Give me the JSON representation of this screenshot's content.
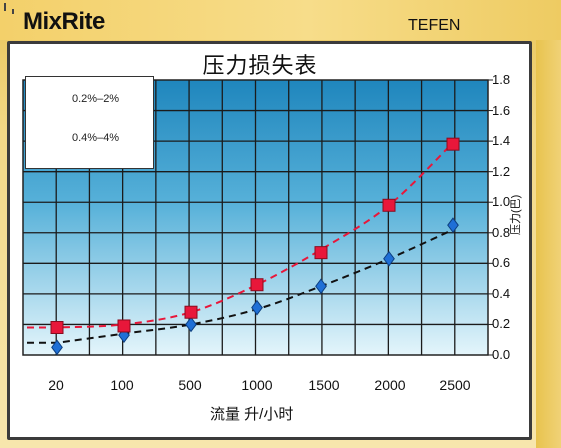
{
  "brand": {
    "name": "MixRite",
    "maker": "TEFEN"
  },
  "colors": {
    "series1": "#1f6fd6",
    "series2": "#e8173a",
    "grid_bg_top": "#1f86bd",
    "grid_bg_bottom": "#dff3fa"
  },
  "chart_data": {
    "type": "scatter",
    "title": "压力损失表",
    "xlabel": "流量 升/小时",
    "ylabel": "压力(巴)",
    "categories": [
      "20",
      "100",
      "500",
      "1000",
      "1500",
      "2000",
      "2500"
    ],
    "ylim": [
      0,
      1.8
    ],
    "yticks": [
      "0.0",
      "0.2",
      "0.4",
      "0.6",
      "0.8",
      "1.0",
      "1.2",
      "1.4",
      "1.6",
      "1.8"
    ],
    "grid": true,
    "legend_position": "top-left",
    "series": [
      {
        "name": "0.2%–2%",
        "marker": "diamond",
        "values": [
          0.05,
          0.13,
          0.2,
          0.31,
          0.45,
          0.63,
          0.85
        ],
        "trend": [
          0.08,
          0.14,
          0.2,
          0.3,
          0.45,
          0.63,
          0.82
        ]
      },
      {
        "name": "0.4%–4%",
        "marker": "square",
        "values": [
          0.18,
          0.19,
          0.28,
          0.46,
          0.67,
          0.98,
          1.38
        ],
        "trend": [
          0.18,
          0.2,
          0.28,
          0.46,
          0.69,
          0.98,
          1.39
        ]
      }
    ]
  }
}
